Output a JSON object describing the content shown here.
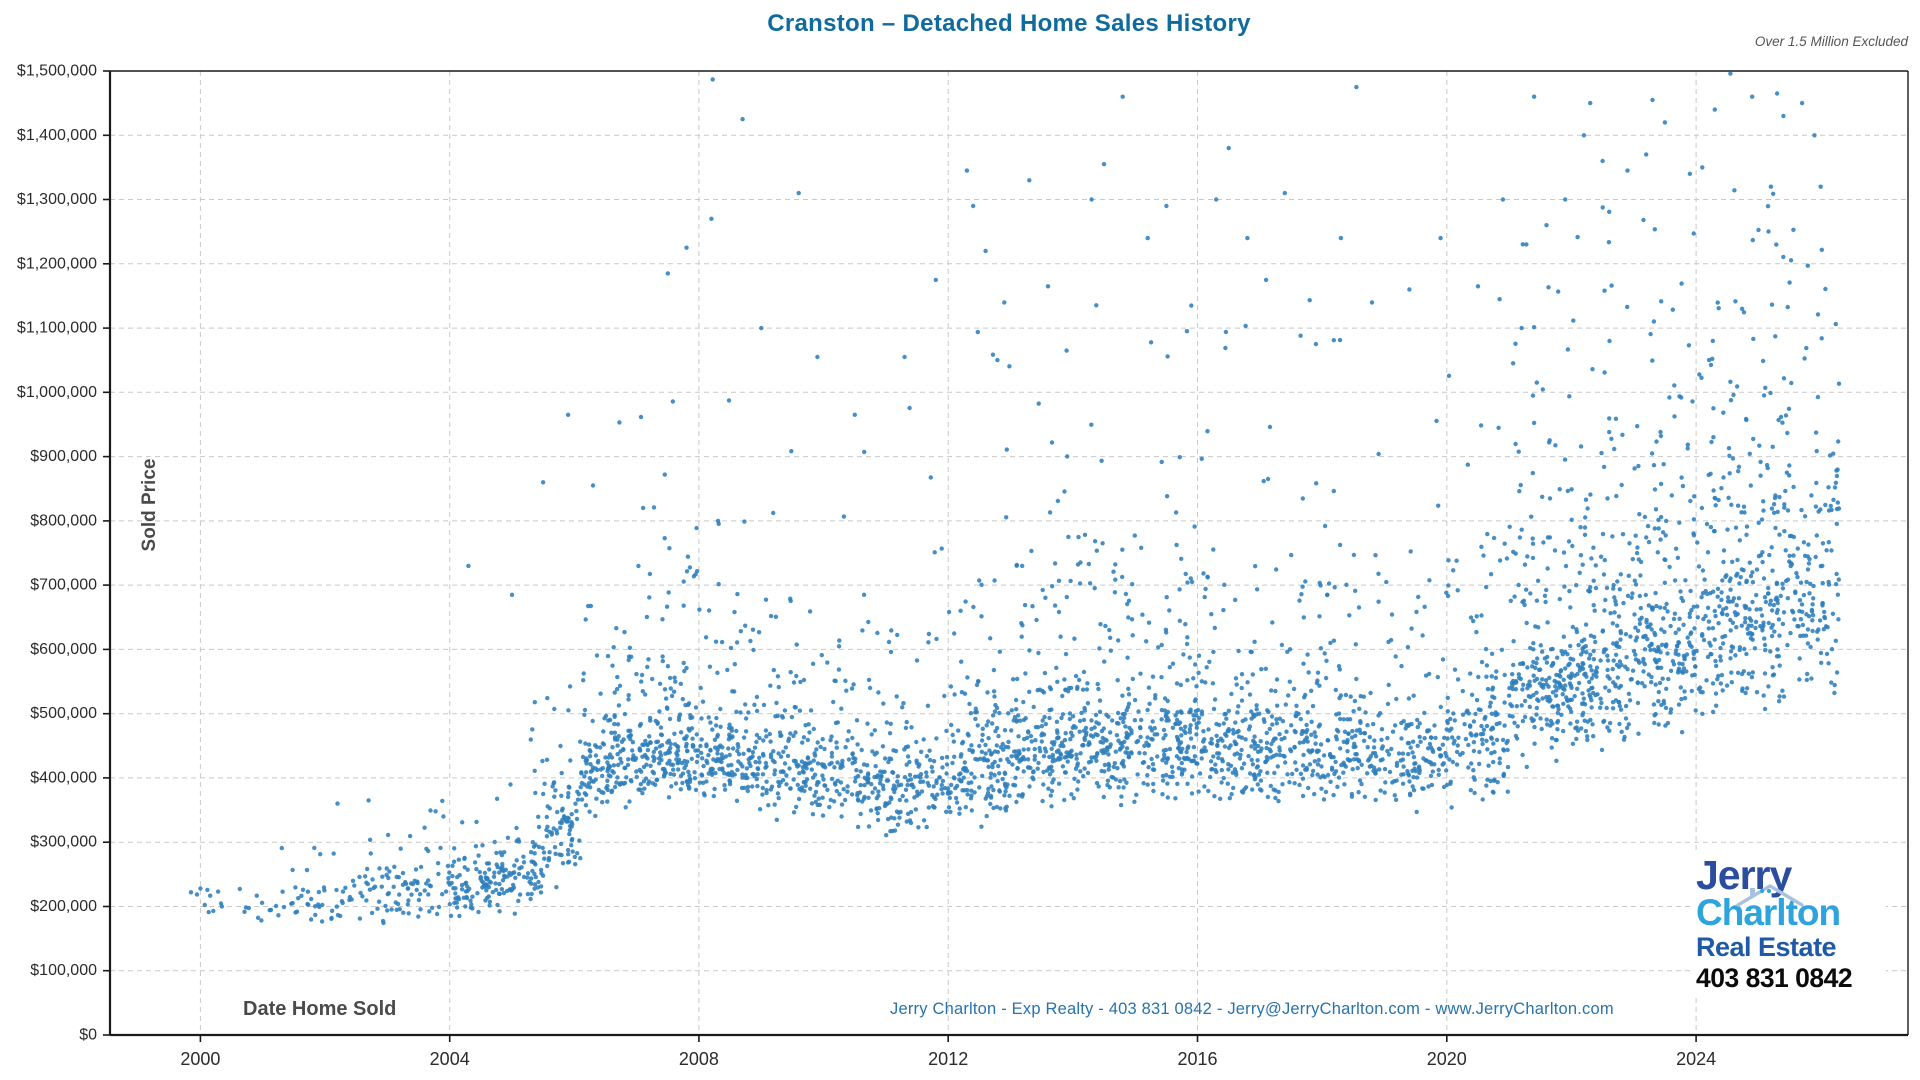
{
  "page": {
    "title": "Cranston – Detached Home Sales History"
  },
  "footer": {
    "contact_line": "Jerry Charlton - Exp Realty - 403 831 0842 - Jerry@JerryCharlton.com - www.JerryCharlton.com"
  },
  "logo": {
    "first_name": "Jerry",
    "last_name": "Charlton",
    "tagline": "Real Estate",
    "phone": "403 831 0842"
  },
  "colors": {
    "title": "#0f6a9d",
    "note": "#555555",
    "footer_text": "#2673ad",
    "axis": "#1a1a1a",
    "grid": "#c9c9c9",
    "tick_label": "#2b2b2b",
    "axis_label": "#4a4a4a",
    "point": "#2e7ebc",
    "logo_first": "#2b4da0",
    "logo_last": "#2da4dc",
    "logo_tagline": "#2059a6",
    "logo_phone": "#0b0b0b",
    "logo_roof": "#a9c2dc"
  },
  "chart_data": {
    "type": "scatter",
    "title": "Cranston – Detached Home Sales History",
    "note": "Over 1.5 Million Excluded",
    "xlabel": "Date Home Sold",
    "ylabel": "Sold Price",
    "xlim": [
      1998.55,
      2027.4
    ],
    "ylim": [
      0,
      1500000
    ],
    "grid": "dashed",
    "legend": "none",
    "point_color": "#2e7ebc",
    "point_radius": 2.2,
    "point_opacity": 0.88,
    "x_ticks": [
      {
        "value": 2000,
        "label": "2000"
      },
      {
        "value": 2004,
        "label": "2004"
      },
      {
        "value": 2008,
        "label": "2008"
      },
      {
        "value": 2012,
        "label": "2012"
      },
      {
        "value": 2016,
        "label": "2016"
      },
      {
        "value": 2020,
        "label": "2020"
      },
      {
        "value": 2024,
        "label": "2024"
      }
    ],
    "y_ticks": [
      {
        "value": 0,
        "label": "$0"
      },
      {
        "value": 100000,
        "label": "$100,000"
      },
      {
        "value": 200000,
        "label": "$200,000"
      },
      {
        "value": 300000,
        "label": "$300,000"
      },
      {
        "value": 400000,
        "label": "$400,000"
      },
      {
        "value": 500000,
        "label": "$500,000"
      },
      {
        "value": 600000,
        "label": "$600,000"
      },
      {
        "value": 700000,
        "label": "$700,000"
      },
      {
        "value": 800000,
        "label": "$800,000"
      },
      {
        "value": 900000,
        "label": "$900,000"
      },
      {
        "value": 1000000,
        "label": "$1,000,000"
      },
      {
        "value": 1100000,
        "label": "$1,100,000"
      },
      {
        "value": 1200000,
        "label": "$1,200,000"
      },
      {
        "value": 1300000,
        "label": "$1,300,000"
      },
      {
        "value": 1400000,
        "label": "$1,400,000"
      },
      {
        "value": 1500000,
        "label": "$1,500,000"
      }
    ],
    "units_note": "cluster prices are in thousands of dollars ($k); sales run from late 1999 through 2026",
    "cluster_format": "[year_start, year_end, count, price_lo_start_k, price_hi_start_k, price_lo_end_k, price_hi_end_k, mode] mode: b=main band, t=upper tail, u=uniform sparse highs",
    "clusters": [
      [
        1999.78,
        2000.6,
        9,
        190,
        242,
        178,
        246,
        "b"
      ],
      [
        2000.5,
        2001.5,
        16,
        168,
        240,
        168,
        240,
        "b"
      ],
      [
        2001.5,
        2002.5,
        36,
        165,
        252,
        165,
        252,
        "b"
      ],
      [
        2002.5,
        2003.5,
        55,
        168,
        266,
        168,
        266,
        "b"
      ],
      [
        2003.5,
        2004.5,
        72,
        170,
        280,
        172,
        285,
        "b"
      ],
      [
        2004.5,
        2005.3,
        85,
        176,
        298,
        182,
        310,
        "b"
      ],
      [
        2005.3,
        2006.1,
        100,
        195,
        350,
        255,
        430,
        "b"
      ],
      [
        2006.1,
        2007,
        125,
        330,
        478,
        355,
        500,
        "b"
      ],
      [
        2007,
        2008,
        155,
        358,
        530,
        355,
        525,
        "b"
      ],
      [
        2008,
        2009,
        135,
        350,
        512,
        342,
        505,
        "b"
      ],
      [
        2009,
        2010,
        125,
        332,
        500,
        328,
        495,
        "b"
      ],
      [
        2010,
        2011,
        115,
        320,
        492,
        312,
        485,
        "b"
      ],
      [
        2011,
        2012,
        115,
        302,
        470,
        305,
        475,
        "b"
      ],
      [
        2012,
        2013,
        140,
        312,
        500,
        325,
        515,
        "b"
      ],
      [
        2013,
        2014,
        155,
        340,
        540,
        348,
        552,
        "b"
      ],
      [
        2014,
        2015,
        155,
        352,
        562,
        352,
        560,
        "b"
      ],
      [
        2015,
        2016,
        145,
        350,
        552,
        348,
        548,
        "b"
      ],
      [
        2016,
        2017,
        135,
        350,
        545,
        352,
        545,
        "b"
      ],
      [
        2017,
        2018,
        130,
        356,
        542,
        354,
        538,
        "b"
      ],
      [
        2018,
        2019,
        115,
        350,
        532,
        346,
        528,
        "b"
      ],
      [
        2019,
        2020,
        110,
        340,
        520,
        342,
        522,
        "b"
      ],
      [
        2020,
        2021,
        120,
        342,
        555,
        355,
        580,
        "b"
      ],
      [
        2021,
        2022,
        165,
        382,
        650,
        420,
        685,
        "b"
      ],
      [
        2022,
        2023,
        165,
        422,
        692,
        438,
        710,
        "b"
      ],
      [
        2023,
        2024,
        165,
        452,
        738,
        468,
        758,
        "b"
      ],
      [
        2024,
        2025.2,
        180,
        480,
        788,
        495,
        805,
        "b"
      ],
      [
        2025.2,
        2026.3,
        145,
        500,
        818,
        508,
        825,
        "b"
      ],
      [
        2001.3,
        2003.5,
        14,
        255,
        332,
        260,
        340,
        "t"
      ],
      [
        2003.5,
        2005.3,
        18,
        285,
        380,
        300,
        395,
        "t"
      ],
      [
        2005.3,
        2006.1,
        20,
        352,
        520,
        430,
        560,
        "t"
      ],
      [
        2006.1,
        2007,
        32,
        478,
        650,
        500,
        665,
        "t"
      ],
      [
        2007,
        2008,
        40,
        525,
        765,
        520,
        760,
        "t"
      ],
      [
        2008,
        2009,
        30,
        505,
        725,
        500,
        718,
        "t"
      ],
      [
        2009,
        2010,
        28,
        495,
        712,
        492,
        708,
        "t"
      ],
      [
        2010,
        2011,
        22,
        485,
        662,
        480,
        655,
        "t"
      ],
      [
        2011,
        2012,
        20,
        468,
        640,
        470,
        645,
        "t"
      ],
      [
        2012,
        2013,
        32,
        498,
        712,
        505,
        722,
        "t"
      ],
      [
        2013,
        2014,
        36,
        532,
        772,
        538,
        778,
        "t"
      ],
      [
        2014,
        2015,
        38,
        552,
        800,
        550,
        798,
        "t"
      ],
      [
        2015,
        2016,
        32,
        545,
        792,
        542,
        788,
        "t"
      ],
      [
        2016,
        2017,
        30,
        538,
        772,
        540,
        770,
        "t"
      ],
      [
        2017,
        2018,
        28,
        535,
        768,
        532,
        765,
        "t"
      ],
      [
        2018,
        2019,
        25,
        525,
        760,
        522,
        755,
        "t"
      ],
      [
        2019,
        2020,
        23,
        515,
        732,
        518,
        735,
        "t"
      ],
      [
        2020,
        2021,
        27,
        548,
        812,
        560,
        820,
        "t"
      ],
      [
        2021,
        2022,
        48,
        665,
        930,
        680,
        940,
        "t"
      ],
      [
        2022,
        2023,
        50,
        688,
        958,
        695,
        965,
        "t"
      ],
      [
        2023,
        2024,
        52,
        735,
        1008,
        742,
        1015,
        "t"
      ],
      [
        2024,
        2025.2,
        60,
        782,
        1058,
        790,
        1062,
        "t"
      ],
      [
        2025.2,
        2026.3,
        50,
        812,
        1062,
        815,
        1058,
        "t"
      ],
      [
        2006,
        2008,
        10,
        655,
        1000,
        655,
        1000,
        "u"
      ],
      [
        2008,
        2010,
        9,
        625,
        1000,
        625,
        1000,
        "u"
      ],
      [
        2010,
        2012,
        8,
        605,
        1000,
        605,
        1000,
        "u"
      ],
      [
        2012,
        2014,
        14,
        645,
        1100,
        645,
        1100,
        "u"
      ],
      [
        2014,
        2016,
        14,
        685,
        1150,
        685,
        1150,
        "u"
      ],
      [
        2016,
        2018,
        13,
        680,
        1150,
        680,
        1150,
        "u"
      ],
      [
        2018,
        2020,
        12,
        662,
        1100,
        662,
        1100,
        "u"
      ],
      [
        2020,
        2021,
        8,
        700,
        1150,
        700,
        1150,
        "u"
      ],
      [
        2021,
        2022.5,
        16,
        948,
        1248,
        948,
        1248,
        "u"
      ],
      [
        2022.5,
        2024,
        18,
        1012,
        1298,
        1012,
        1298,
        "u"
      ],
      [
        2024,
        2026.3,
        28,
        1068,
        1330,
        1068,
        1330,
        "u"
      ]
    ],
    "notable_points_k": [
      [
        1999.85,
        222
      ],
      [
        2000.0,
        228
      ],
      [
        2002.2,
        360
      ],
      [
        2002.7,
        365
      ],
      [
        2003.9,
        340
      ],
      [
        2004.3,
        730
      ],
      [
        2005.0,
        685
      ],
      [
        2005.5,
        860
      ],
      [
        2005.9,
        965
      ],
      [
        2006.3,
        855
      ],
      [
        2007.5,
        1185
      ],
      [
        2007.8,
        1225
      ],
      [
        2008.2,
        1270
      ],
      [
        2008.22,
        1487
      ],
      [
        2008.7,
        1425
      ],
      [
        2009.0,
        1100
      ],
      [
        2009.6,
        1310
      ],
      [
        2009.9,
        1055
      ],
      [
        2010.5,
        965
      ],
      [
        2011.3,
        1055
      ],
      [
        2011.8,
        1175
      ],
      [
        2012.3,
        1345
      ],
      [
        2012.4,
        1290
      ],
      [
        2012.6,
        1220
      ],
      [
        2012.9,
        1140
      ],
      [
        2013.3,
        1330
      ],
      [
        2013.6,
        1165
      ],
      [
        2013.9,
        1065
      ],
      [
        2014.3,
        1300
      ],
      [
        2014.5,
        1355
      ],
      [
        2014.8,
        1460
      ],
      [
        2015.2,
        1240
      ],
      [
        2015.5,
        1290
      ],
      [
        2015.9,
        1135
      ],
      [
        2016.3,
        1300
      ],
      [
        2016.5,
        1380
      ],
      [
        2016.8,
        1240
      ],
      [
        2017.1,
        1175
      ],
      [
        2017.4,
        1310
      ],
      [
        2017.9,
        1075
      ],
      [
        2018.3,
        1240
      ],
      [
        2018.55,
        1475
      ],
      [
        2018.8,
        1140
      ],
      [
        2019.4,
        1160
      ],
      [
        2019.9,
        1240
      ],
      [
        2020.5,
        1165
      ],
      [
        2020.9,
        1300
      ],
      [
        2021.2,
        1100
      ],
      [
        2021.4,
        1460
      ],
      [
        2021.6,
        1260
      ],
      [
        2021.9,
        1300
      ],
      [
        2022.2,
        1400
      ],
      [
        2022.3,
        1450
      ],
      [
        2022.5,
        1360
      ],
      [
        2022.9,
        1345
      ],
      [
        2023.2,
        1370
      ],
      [
        2023.3,
        1455
      ],
      [
        2023.5,
        1420
      ],
      [
        2023.9,
        1340
      ],
      [
        2024.1,
        1350
      ],
      [
        2024.3,
        1440
      ],
      [
        2024.55,
        1497
      ],
      [
        2024.9,
        1460
      ],
      [
        2025.2,
        1320
      ],
      [
        2025.3,
        1465
      ],
      [
        2025.4,
        1430
      ],
      [
        2025.7,
        1450
      ],
      [
        2025.9,
        1400
      ],
      [
        2026.0,
        1320
      ]
    ]
  }
}
